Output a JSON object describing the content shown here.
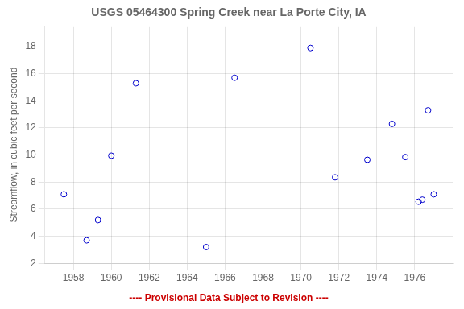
{
  "chart_data": {
    "type": "scatter",
    "title": "USGS 05464300 Spring Creek near La Porte City, IA",
    "ylabel": "Streamflow, in cubic feet per second",
    "x": [
      1957.5,
      1958.7,
      1959.3,
      1960.0,
      1961.3,
      1966.5,
      1965.0,
      1970.5,
      1971.8,
      1973.5,
      1974.8,
      1975.5,
      1976.2,
      1976.4,
      1976.7,
      1977.0
    ],
    "values": [
      7.1,
      3.7,
      5.2,
      9.95,
      15.3,
      15.7,
      3.2,
      17.9,
      8.35,
      9.65,
      12.3,
      9.85,
      6.55,
      6.7,
      13.3,
      7.1
    ],
    "color": "#0000cc",
    "marker": "open circle",
    "xlim": [
      1956.5,
      1978.0
    ],
    "ylim": [
      2.0,
      19.5
    ],
    "xticks": [
      1958,
      1960,
      1962,
      1964,
      1966,
      1968,
      1970,
      1972,
      1974,
      1976
    ],
    "yticks": [
      2,
      4,
      6,
      8,
      10,
      12,
      14,
      16,
      18
    ],
    "grid": true,
    "annotations": [
      {
        "text": "---- Provisional Data Subject to Revision ----",
        "color": "#cc0000"
      }
    ]
  }
}
